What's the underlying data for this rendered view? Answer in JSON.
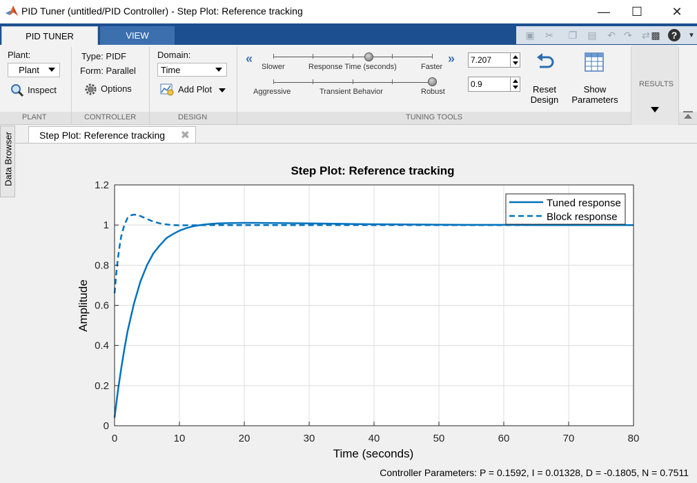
{
  "window": {
    "title": "PID Tuner (untitled/PID Controller) - Step Plot: Reference tracking"
  },
  "ribbon_tabs": [
    {
      "label": "PID TUNER",
      "active": true
    },
    {
      "label": "VIEW",
      "active": false
    }
  ],
  "plant": {
    "label": "Plant:",
    "value": "Plant",
    "inspect_label": "Inspect",
    "section": "PLANT"
  },
  "controller": {
    "type_text": "Type:  PIDF",
    "form_text": "Form:  Parallel",
    "options_label": "Options",
    "section": "CONTROLLER"
  },
  "design": {
    "domain_label": "Domain:",
    "domain_value": "Time",
    "add_plot_label": "Add Plot",
    "section": "DESIGN"
  },
  "tuning": {
    "response_slider": {
      "left": "Slower",
      "center": "Response Time (seconds)",
      "right": "Faster",
      "value": "7.207",
      "position": 0.6
    },
    "behavior_slider": {
      "left": "Aggressive",
      "center": "Transient Behavior",
      "right": "Robust",
      "value": "0.9",
      "position": 1.0
    },
    "reset_label": [
      "Reset",
      "Design"
    ],
    "show_params_label": [
      "Show",
      "Parameters"
    ],
    "section": "TUNING TOOLS"
  },
  "results": {
    "section": "RESULTS"
  },
  "side_panel": {
    "data_browser": "Data Browser"
  },
  "document_tab": {
    "label": "Step Plot: Reference tracking"
  },
  "chart_data": {
    "type": "line",
    "title": "Step Plot: Reference tracking",
    "xlabel": "Time (seconds)",
    "ylabel": "Amplitude",
    "xlim": [
      0,
      80
    ],
    "ylim": [
      0,
      1.2
    ],
    "xticks": [
      0,
      10,
      20,
      30,
      40,
      50,
      60,
      70,
      80
    ],
    "yticks": [
      0,
      0.2,
      0.4,
      0.6,
      0.8,
      1,
      1.2
    ],
    "ytick_labels": [
      "0",
      "0.2",
      "0.4",
      "0.6",
      "0.8",
      "1",
      "1.2"
    ],
    "grid": true,
    "legend_position": "top-right",
    "series": [
      {
        "name": "Tuned response",
        "style": "solid",
        "x": [
          0,
          0.5,
          1,
          1.5,
          2,
          3,
          4,
          5,
          6,
          7,
          8,
          9,
          10,
          11,
          12,
          13,
          14,
          15,
          16,
          18,
          20,
          22,
          25,
          30,
          35,
          40,
          45,
          50,
          55,
          60,
          65,
          70,
          75,
          80
        ],
        "y": [
          0.04,
          0.17,
          0.28,
          0.38,
          0.47,
          0.61,
          0.72,
          0.8,
          0.86,
          0.9,
          0.935,
          0.955,
          0.972,
          0.984,
          0.993,
          0.999,
          1.003,
          1.006,
          1.008,
          1.01,
          1.011,
          1.011,
          1.01,
          1.008,
          1.006,
          1.004,
          1.003,
          1.002,
          1.001,
          1.001,
          1.0,
          1.0,
          1.0,
          1.0
        ]
      },
      {
        "name": "Block response",
        "style": "dashed",
        "x": [
          0,
          0.25,
          0.5,
          0.75,
          1,
          1.5,
          2,
          2.5,
          3,
          3.5,
          4,
          5,
          6,
          7,
          8,
          9,
          10,
          12,
          15,
          20,
          30,
          40,
          50,
          60,
          70,
          80
        ],
        "y": [
          0.66,
          0.75,
          0.83,
          0.89,
          0.94,
          1.0,
          1.035,
          1.048,
          1.052,
          1.05,
          1.045,
          1.03,
          1.017,
          1.008,
          1.003,
          1.0,
          0.999,
          0.999,
          1.0,
          1.0,
          1.0,
          1.0,
          1.0,
          1.0,
          1.0,
          1.0
        ]
      }
    ],
    "color": "#0072bd"
  },
  "status": {
    "controller_parameters": "Controller Parameters: P = 0.1592, I = 0.01328, D = -0.1805, N = 0.7511"
  }
}
